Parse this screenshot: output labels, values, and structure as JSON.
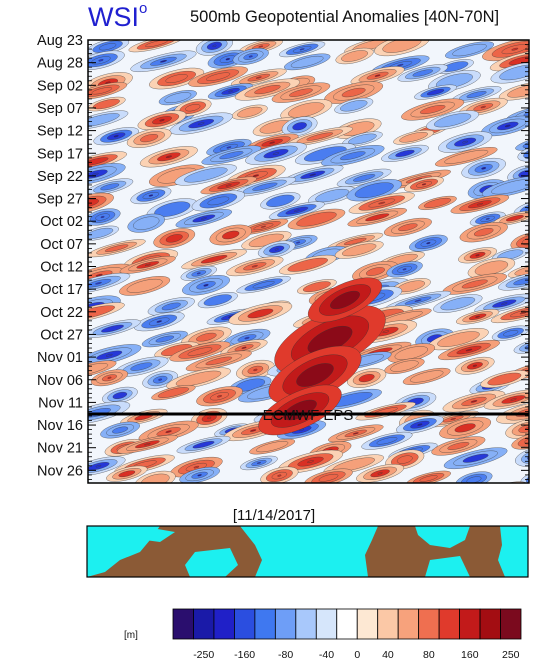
{
  "header": {
    "logo": "WSI",
    "logo_mark": "o",
    "title": "500mb Geopotential Anomalies [40N-70N]"
  },
  "chart_data": {
    "type": "heatmap",
    "title": "500mb Geopotential Anomalies [40N-70N]",
    "ytick_labels": [
      "Aug 23",
      "Aug 28",
      "Sep 02",
      "Sep 07",
      "Sep 12",
      "Sep 17",
      "Sep 22",
      "Sep 27",
      "Oct 02",
      "Oct 07",
      "Oct 12",
      "Oct 17",
      "Oct 22",
      "Oct 27",
      "Nov 01",
      "Nov 06",
      "Nov 11",
      "Nov 16",
      "Nov 21",
      "Nov 26"
    ],
    "forecast_divider_label": "ECMWF EPS",
    "map_date": "[11/14/2017]",
    "colorbar": {
      "unit": "[m]",
      "tick_labels": [
        "-250",
        "-160",
        "-80",
        "-40",
        "0",
        "40",
        "80",
        "160",
        "250"
      ],
      "colors": [
        "#2a0e6e",
        "#1a1aa8",
        "#2020c8",
        "#2b4ee0",
        "#3f78f0",
        "#6e9ef7",
        "#a8c8fb",
        "#d6e6fb",
        "#ffffff",
        "#fde8d3",
        "#fbc8a6",
        "#f7a27c",
        "#ef6f50",
        "#e03a2c",
        "#c21a1a",
        "#a30d12",
        "#7b0a1e"
      ]
    }
  }
}
